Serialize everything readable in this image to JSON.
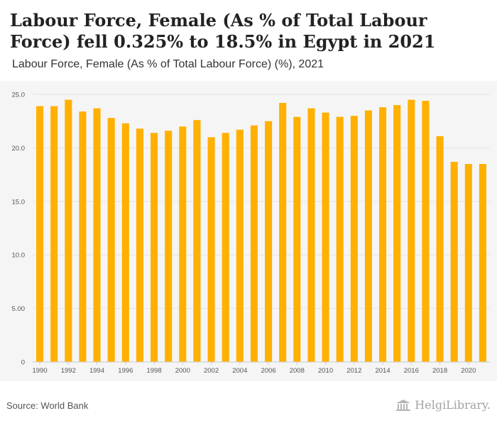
{
  "header": {
    "title": "Labour Force, Female (As % of Total Labour Force) fell 0.325% to 18.5% in Egypt in 2021",
    "subtitle": "Labour Force, Female (As % of Total Labour Force) (%), 2021"
  },
  "footer": {
    "source": "Source: World Bank",
    "logo_text": "HelgiLibrary."
  },
  "colors": {
    "bar": "#ffb000",
    "grid": "#e3e3e3",
    "panel": "#f5f5f5"
  },
  "chart_data": {
    "type": "bar",
    "title": "",
    "xlabel": "",
    "ylabel": "",
    "categories": [
      1990,
      1991,
      1992,
      1993,
      1994,
      1995,
      1996,
      1997,
      1998,
      1999,
      2000,
      2001,
      2002,
      2003,
      2004,
      2005,
      2006,
      2007,
      2008,
      2009,
      2010,
      2011,
      2012,
      2013,
      2014,
      2015,
      2016,
      2017,
      2018,
      2019,
      2020,
      2021
    ],
    "x_tick_labels": [
      "1990",
      "1992",
      "1994",
      "1996",
      "1998",
      "2000",
      "2002",
      "2004",
      "2006",
      "2008",
      "2010",
      "2012",
      "2014",
      "2016",
      "2018",
      "2020"
    ],
    "series": [
      {
        "values": [
          23.9,
          23.9,
          24.5,
          23.4,
          23.7,
          22.8,
          22.3,
          21.8,
          21.4,
          21.6,
          22.0,
          22.6,
          21.0,
          21.4,
          21.7,
          22.1,
          22.5,
          24.2,
          22.9,
          23.7,
          23.3,
          22.9,
          23.0,
          23.5,
          23.8,
          24.0,
          24.5,
          24.4,
          21.1,
          18.7,
          18.5,
          18.5
        ]
      }
    ],
    "ylim": [
      0,
      25
    ],
    "y_ticks": [
      0,
      5,
      10,
      15,
      20,
      25
    ],
    "y_tick_labels": [
      "0",
      "5.00",
      "10.0",
      "15.0",
      "20.0",
      "25.0"
    ],
    "grid": true,
    "legend": "none"
  }
}
